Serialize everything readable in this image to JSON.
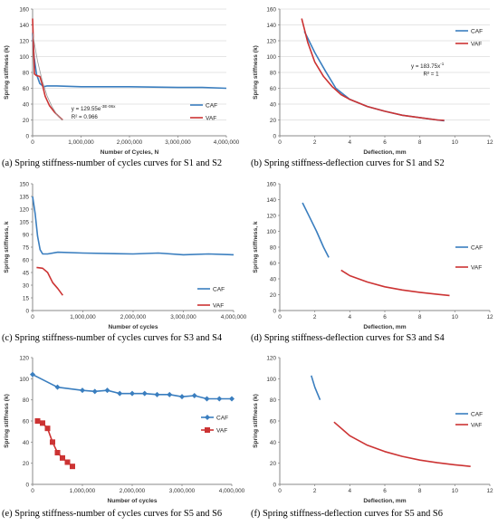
{
  "colors": {
    "caf": "#3a7ebf",
    "vaf": "#cc3333",
    "grid": "#dcdcdc",
    "axis": "#888888"
  },
  "chart_data": [
    {
      "id": "a",
      "type": "line",
      "caption": "(a) Spring stiffness-number of cycles curves for S1 and S2",
      "xlabel": "Number of Cycles, N",
      "ylabel": "Spring stiffness (k)",
      "xlim": [
        0,
        4000000
      ],
      "ylim": [
        0,
        160
      ],
      "xticks": [
        0,
        1000000,
        2000000,
        3000000,
        4000000
      ],
      "xtick_labels": [
        "0",
        "1,000,000",
        "2,000,000",
        "3,000,000",
        "4,000,000"
      ],
      "yticks": [
        0,
        20,
        40,
        60,
        80,
        100,
        120,
        140,
        160
      ],
      "grid": true,
      "legend_position": "right",
      "series": [
        {
          "name": "CAF",
          "color": "caf",
          "marker": "none",
          "x": [
            0,
            30000,
            80000,
            150000,
            230000,
            300000,
            500000,
            1000000,
            2000000,
            3000000,
            3500000,
            4000000
          ],
          "y": [
            130,
            100,
            78,
            66,
            62,
            63,
            63,
            62,
            62,
            61,
            61,
            60
          ]
        },
        {
          "name": "VAF",
          "color": "vaf",
          "marker": "none",
          "x": [
            0,
            20000,
            40000,
            80000,
            150000,
            200000,
            260000,
            350000,
            450000,
            550000,
            620000
          ],
          "y": [
            148,
            110,
            78,
            76,
            75,
            65,
            50,
            38,
            30,
            24,
            20
          ]
        },
        {
          "name": "",
          "color": "#999999",
          "marker": "none",
          "trend": true,
          "x": [
            0,
            100000,
            200000,
            300000,
            400000,
            500000,
            620000
          ],
          "y": [
            129.6,
            94.6,
            69.1,
            50.4,
            36.8,
            26.9,
            19.6
          ]
        }
      ],
      "annotations": [
        {
          "text": "y = 129.55e",
          "sup": "-3E-06x",
          "x": 800000,
          "y": 32
        },
        {
          "text": "R² = 0.966",
          "x": 800000,
          "y": 22
        }
      ]
    },
    {
      "id": "b",
      "type": "line",
      "caption": "(b) Spring stiffness-deflection curves for S1 and S2",
      "xlabel": "Deflection, mm",
      "ylabel": "Spring stiffness (k)",
      "xlim": [
        0,
        12
      ],
      "ylim": [
        0,
        160
      ],
      "xticks": [
        0,
        2,
        4,
        6,
        8,
        10,
        12
      ],
      "xtick_labels": [
        "0",
        "2",
        "4",
        "6",
        "8",
        "10",
        "12"
      ],
      "yticks": [
        0,
        20,
        40,
        60,
        80,
        100,
        120,
        140,
        160
      ],
      "grid": true,
      "legend_position": "top-right",
      "series": [
        {
          "name": "CAF",
          "color": "caf",
          "marker": "none",
          "x": [
            1.4,
            2.0,
            2.6,
            3.2,
            4.0,
            5.0,
            6.0,
            7.0,
            8.0,
            9.0,
            9.4
          ],
          "y": [
            132,
            105,
            82,
            60,
            46,
            37,
            31,
            26,
            23,
            20,
            19
          ]
        },
        {
          "name": "VAF",
          "color": "vaf",
          "marker": "none",
          "x": [
            1.25,
            1.6,
            2.0,
            2.5,
            3.0,
            3.5,
            4.0,
            5.0,
            6.0,
            7.0,
            8.0,
            9.0,
            9.4
          ],
          "y": [
            148,
            118,
            93,
            75,
            62,
            52,
            46,
            37,
            31,
            26,
            23,
            20,
            19.5
          ]
        }
      ],
      "annotations": [
        {
          "text": "y = 183.75x",
          "sup": "-1",
          "x": 7.5,
          "y": 86
        },
        {
          "text": "R² = 1",
          "x": 8.2,
          "y": 76
        }
      ]
    },
    {
      "id": "c",
      "type": "line",
      "caption": "(c) Spring stiffness-number of cycles curves for S3 and S4",
      "xlabel": "Number of cycles",
      "ylabel": "Spring stiffness, k",
      "xlim": [
        0,
        4000000
      ],
      "ylim": [
        0,
        150
      ],
      "xticks": [
        0,
        1000000,
        2000000,
        3000000,
        4000000
      ],
      "xtick_labels": [
        "0",
        "1,000,000",
        "2,000,000",
        "3,000,000",
        "4,000,000"
      ],
      "yticks": [
        0,
        15,
        30,
        45,
        60,
        75,
        90,
        105,
        120,
        135,
        150
      ],
      "grid": false,
      "legend_position": "right",
      "series": [
        {
          "name": "CAF",
          "color": "caf",
          "marker": "none",
          "x": [
            0,
            50000,
            100000,
            150000,
            200000,
            300000,
            500000,
            1000000,
            2000000,
            2500000,
            3000000,
            3500000,
            4000000
          ],
          "y": [
            135,
            115,
            88,
            72,
            67,
            67,
            69,
            68,
            67,
            68,
            66,
            67,
            66
          ]
        },
        {
          "name": "VAF",
          "color": "vaf",
          "marker": "none",
          "x": [
            80000,
            200000,
            300000,
            400000,
            500000,
            600000
          ],
          "y": [
            51,
            50,
            45,
            33,
            26,
            18
          ]
        }
      ],
      "annotations": []
    },
    {
      "id": "d",
      "type": "line",
      "caption": "(d) Spring stiffness-deflection curves for S3 and S4",
      "xlabel": "Deflection, mm",
      "ylabel": "Spring stiffness, k",
      "xlim": [
        0,
        12
      ],
      "ylim": [
        0,
        160
      ],
      "xticks": [
        0,
        2,
        4,
        6,
        8,
        10,
        12
      ],
      "xtick_labels": [
        "0",
        "2",
        "4",
        "6",
        "8",
        "10",
        "12"
      ],
      "yticks": [
        0,
        20,
        40,
        60,
        80,
        100,
        120,
        140,
        160
      ],
      "grid": false,
      "legend_position": "right",
      "series": [
        {
          "name": "CAF",
          "color": "caf",
          "marker": "none",
          "x": [
            1.3,
            1.7,
            2.1,
            2.5,
            2.8
          ],
          "y": [
            136,
            118,
            100,
            80,
            67
          ]
        },
        {
          "name": "VAF",
          "color": "vaf",
          "marker": "none",
          "x": [
            3.5,
            4.0,
            5.0,
            6.0,
            7.0,
            8.0,
            9.0,
            9.7
          ],
          "y": [
            51,
            44,
            36,
            30,
            26,
            23,
            20.5,
            19
          ]
        }
      ],
      "annotations": []
    },
    {
      "id": "e",
      "type": "line",
      "caption": "(e) Spring stiffness-number of cycles curves for S5 and S6",
      "xlabel": "Number of cycles",
      "ylabel": "Spring stiffness (k)",
      "xlim": [
        0,
        4000000
      ],
      "ylim": [
        0,
        120
      ],
      "xticks": [
        0,
        1000000,
        2000000,
        3000000,
        4000000
      ],
      "xtick_labels": [
        "0",
        "1,000,000",
        "2,000,000",
        "3,000,000",
        "4,000,000"
      ],
      "yticks": [
        0,
        20,
        40,
        60,
        80,
        100,
        120
      ],
      "grid": false,
      "legend_position": "right",
      "series": [
        {
          "name": "CAF",
          "color": "caf",
          "marker": "diamond",
          "x": [
            0,
            500000,
            1000000,
            1250000,
            1500000,
            1750000,
            2000000,
            2250000,
            2500000,
            2750000,
            3000000,
            3250000,
            3500000,
            3750000,
            4000000
          ],
          "y": [
            104,
            92,
            89,
            88,
            89,
            86,
            86,
            86,
            85,
            85,
            83,
            84,
            81,
            81,
            81
          ]
        },
        {
          "name": "VAF",
          "color": "vaf",
          "marker": "square",
          "x": [
            100000,
            200000,
            300000,
            400000,
            500000,
            600000,
            700000,
            800000
          ],
          "y": [
            60,
            58,
            53,
            40,
            30,
            25,
            21,
            17
          ]
        }
      ],
      "annotations": []
    },
    {
      "id": "f",
      "type": "line",
      "caption": "(f) Spring stiffness-deflection curves for S5 and S6",
      "xlabel": "Deflection, mm",
      "ylabel": "Spring stiffness (k)",
      "xlim": [
        0,
        12
      ],
      "ylim": [
        0,
        120
      ],
      "xticks": [
        0,
        2,
        4,
        6,
        8,
        10,
        12
      ],
      "xtick_labels": [
        "0",
        "2",
        "4",
        "6",
        "8",
        "10",
        "12"
      ],
      "yticks": [
        0,
        20,
        40,
        60,
        80,
        100,
        120
      ],
      "grid": false,
      "legend_position": "right",
      "series": [
        {
          "name": "CAF",
          "color": "caf",
          "marker": "none",
          "x": [
            1.8,
            2.0,
            2.3
          ],
          "y": [
            103,
            92,
            80
          ]
        },
        {
          "name": "VAF",
          "color": "vaf",
          "marker": "none",
          "x": [
            3.1,
            4.0,
            5.0,
            6.0,
            7.0,
            8.0,
            9.0,
            10.0,
            10.9
          ],
          "y": [
            59,
            46,
            37,
            31,
            26.5,
            23,
            20.5,
            18.5,
            17
          ]
        }
      ],
      "annotations": []
    }
  ]
}
